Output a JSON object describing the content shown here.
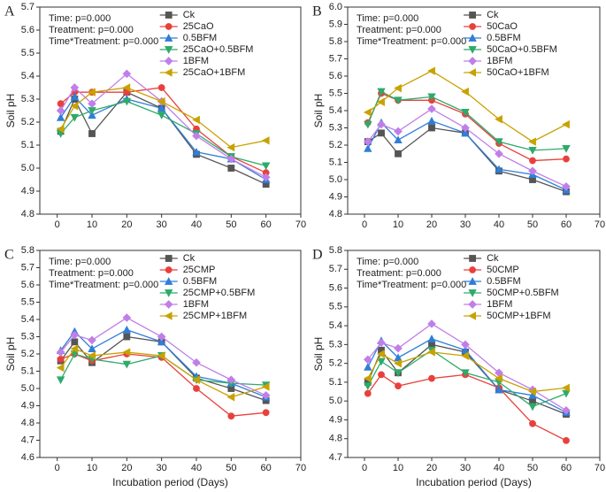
{
  "chart_data": [
    {
      "type": "line",
      "panel_label": "A",
      "annotations": [
        "Time: p=0.000",
        "Treatment: p=0.000",
        "Time*Treatment: p=0.000"
      ],
      "y_label": "Soil pH",
      "x": [
        1,
        5,
        10,
        20,
        30,
        40,
        50,
        60
      ],
      "xlim": [
        -5,
        70
      ],
      "xticks": [
        0,
        10,
        20,
        30,
        40,
        50,
        60,
        70
      ],
      "ylim": [
        4.8,
        5.7
      ],
      "yticks": [
        4.8,
        4.9,
        {
          "value": 5,
          "label": "5.0"
        },
        5.1,
        5.2,
        5.3,
        5.4,
        5.5,
        5.6,
        5.7
      ],
      "series": [
        {
          "name": "Ck",
          "color": "#555555",
          "marker": "square",
          "values": [
            5.16,
            5.3,
            5.15,
            5.33,
            5.26,
            5.06,
            5.0,
            4.93
          ]
        },
        {
          "name": "25CaO",
          "color": "#e8413c",
          "marker": "circle",
          "values": [
            5.28,
            5.33,
            5.33,
            5.33,
            5.35,
            5.17,
            5.05,
            4.98
          ]
        },
        {
          "name": "0.5BFM",
          "color": "#2f7ed8",
          "marker": "triangle-up",
          "values": [
            5.22,
            5.31,
            5.23,
            5.3,
            5.26,
            5.07,
            5.04,
            4.95
          ]
        },
        {
          "name": "25CaO+0.5BFM",
          "color": "#2eaa6b",
          "marker": "triangle-down",
          "values": [
            5.15,
            5.22,
            5.25,
            5.29,
            5.23,
            5.15,
            5.05,
            5.01
          ]
        },
        {
          "name": "1BFM",
          "color": "#c07fe8",
          "marker": "diamond",
          "values": [
            5.25,
            5.35,
            5.28,
            5.41,
            5.29,
            5.14,
            5.04,
            4.96
          ]
        },
        {
          "name": "25CaO+1BFM",
          "color": "#c8a200",
          "marker": "triangle-left",
          "values": [
            5.17,
            5.27,
            5.33,
            5.35,
            5.29,
            5.21,
            5.09,
            5.12
          ]
        }
      ]
    },
    {
      "type": "line",
      "panel_label": "B",
      "annotations": [
        "Time: p=0.000",
        "Treatment: p=0.000",
        "Time*Treatment: p=0.000"
      ],
      "y_label": "Soil pH",
      "x": [
        1,
        5,
        10,
        20,
        30,
        40,
        50,
        60
      ],
      "xlim": [
        -5,
        70
      ],
      "xticks": [
        0,
        10,
        20,
        30,
        40,
        50,
        60,
        70
      ],
      "ylim": [
        4.8,
        6.0
      ],
      "yticks": [
        4.8,
        4.9,
        {
          "value": 5,
          "label": "5.0"
        },
        5.1,
        5.2,
        5.3,
        5.4,
        5.5,
        5.6,
        5.7,
        5.8,
        5.9,
        {
          "value": 6,
          "label": "6.0"
        }
      ],
      "series": [
        {
          "name": "Ck",
          "color": "#555555",
          "marker": "square",
          "values": [
            5.22,
            5.27,
            5.15,
            5.3,
            5.27,
            5.05,
            5.0,
            4.93
          ]
        },
        {
          "name": "50CaO",
          "color": "#e8413c",
          "marker": "circle",
          "values": [
            5.33,
            5.5,
            5.46,
            5.46,
            5.38,
            5.21,
            5.11,
            5.12
          ]
        },
        {
          "name": "0.5BFM",
          "color": "#2f7ed8",
          "marker": "triangle-up",
          "values": [
            5.18,
            5.33,
            5.23,
            5.34,
            5.27,
            5.06,
            5.03,
            4.94
          ]
        },
        {
          "name": "50CaO+0.5BFM",
          "color": "#2eaa6b",
          "marker": "triangle-down",
          "values": [
            5.32,
            5.51,
            5.46,
            5.48,
            5.39,
            5.22,
            5.17,
            5.18
          ]
        },
        {
          "name": "1BFM",
          "color": "#c07fe8",
          "marker": "diamond",
          "values": [
            5.22,
            5.32,
            5.28,
            5.41,
            5.3,
            5.15,
            5.05,
            4.96
          ]
        },
        {
          "name": "50CaO+1BFM",
          "color": "#c8a200",
          "marker": "triangle-left",
          "values": [
            5.39,
            5.45,
            5.53,
            5.63,
            5.51,
            5.35,
            5.22,
            5.32
          ]
        }
      ]
    },
    {
      "type": "line",
      "panel_label": "C",
      "annotations": [
        "Time: p=0.000",
        "Treatment: p=0.000",
        "Time*Treatment: p=0.000"
      ],
      "y_label": "Soil pH",
      "x_label": "Incubation period (Days)",
      "x": [
        1,
        5,
        10,
        20,
        30,
        40,
        50,
        60
      ],
      "xlim": [
        -5,
        70
      ],
      "xticks": [
        0,
        10,
        20,
        30,
        40,
        50,
        60,
        70
      ],
      "ylim": [
        4.6,
        5.8
      ],
      "yticks": [
        4.6,
        4.7,
        4.8,
        4.9,
        {
          "value": 5,
          "label": "5.0"
        },
        5.1,
        5.2,
        5.3,
        5.4,
        5.5,
        5.6,
        5.7,
        5.8
      ],
      "series": [
        {
          "name": "Ck",
          "color": "#555555",
          "marker": "square",
          "values": [
            5.16,
            5.27,
            5.15,
            5.3,
            5.27,
            5.06,
            5.0,
            4.93
          ]
        },
        {
          "name": "25CMP",
          "color": "#e8413c",
          "marker": "circle",
          "values": [
            5.17,
            5.2,
            5.16,
            5.2,
            5.18,
            5.0,
            4.84,
            4.86
          ]
        },
        {
          "name": "0.5BFM",
          "color": "#2f7ed8",
          "marker": "triangle-up",
          "values": [
            5.22,
            5.33,
            5.23,
            5.34,
            5.27,
            5.07,
            5.03,
            4.95
          ]
        },
        {
          "name": "25CMP+0.5BFM",
          "color": "#2eaa6b",
          "marker": "triangle-down",
          "values": [
            5.05,
            5.2,
            5.17,
            5.14,
            5.19,
            5.05,
            5.03,
            5.02
          ]
        },
        {
          "name": "1BFM",
          "color": "#c07fe8",
          "marker": "diamond",
          "values": [
            5.21,
            5.31,
            5.28,
            5.41,
            5.3,
            5.15,
            5.05,
            4.96
          ]
        },
        {
          "name": "25CMP+1BFM",
          "color": "#c8a200",
          "marker": "triangle-left",
          "values": [
            5.12,
            5.23,
            5.19,
            5.21,
            5.19,
            5.05,
            4.95,
            5.01
          ]
        }
      ]
    },
    {
      "type": "line",
      "panel_label": "D",
      "annotations": [
        "Time: p=0.000",
        "Treatment: p=0.000",
        "Time*Treatment: p=0.000"
      ],
      "y_label": "Soil pH",
      "x_label": "Incubation period (Days)",
      "x": [
        1,
        5,
        10,
        20,
        30,
        40,
        50,
        60
      ],
      "xlim": [
        -5,
        70
      ],
      "xticks": [
        0,
        10,
        20,
        30,
        40,
        50,
        60,
        70
      ],
      "ylim": [
        4.7,
        5.8
      ],
      "yticks": [
        4.7,
        4.8,
        4.9,
        {
          "value": 5,
          "label": "5.0"
        },
        5.1,
        5.2,
        5.3,
        5.4,
        5.5,
        5.6,
        5.7,
        5.8
      ],
      "series": [
        {
          "name": "Ck",
          "color": "#555555",
          "marker": "square",
          "values": [
            5.1,
            5.27,
            5.15,
            5.3,
            5.26,
            5.06,
            5.0,
            4.93
          ]
        },
        {
          "name": "50CMP",
          "color": "#e8413c",
          "marker": "circle",
          "values": [
            5.04,
            5.14,
            5.08,
            5.12,
            5.14,
            5.07,
            4.88,
            4.79
          ]
        },
        {
          "name": "0.5BFM",
          "color": "#2f7ed8",
          "marker": "triangle-up",
          "values": [
            5.18,
            5.32,
            5.23,
            5.33,
            5.27,
            5.06,
            5.03,
            4.94
          ]
        },
        {
          "name": "50CMP+0.5BFM",
          "color": "#2eaa6b",
          "marker": "triangle-down",
          "values": [
            5.08,
            5.21,
            5.15,
            5.27,
            5.15,
            5.1,
            4.97,
            5.04
          ]
        },
        {
          "name": "1BFM",
          "color": "#c07fe8",
          "marker": "diamond",
          "values": [
            5.22,
            5.31,
            5.28,
            5.41,
            5.3,
            5.15,
            5.06,
            4.95
          ]
        },
        {
          "name": "50CMP+1BFM",
          "color": "#c8a200",
          "marker": "triangle-left",
          "values": [
            5.12,
            5.25,
            5.2,
            5.26,
            5.24,
            5.12,
            5.05,
            5.07
          ]
        }
      ]
    }
  ]
}
